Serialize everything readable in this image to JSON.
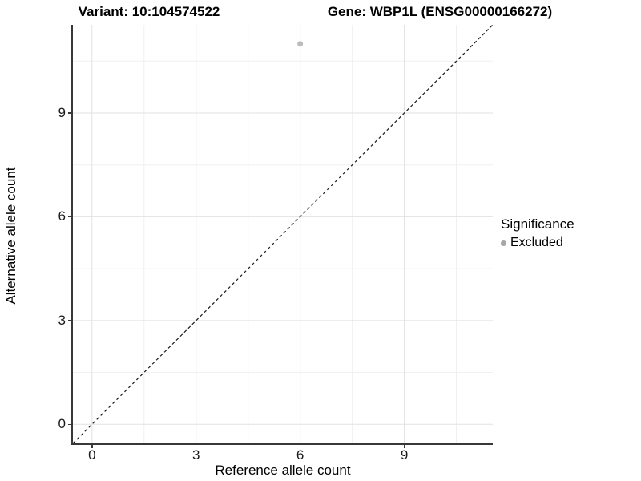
{
  "titles": {
    "variant": "Variant: 10:104574522",
    "gene": "Gene: WBP1L (ENSG00000166272)"
  },
  "axes": {
    "x_label": "Reference allele count",
    "y_label": "Alternative allele count"
  },
  "legend": {
    "title": "Significance",
    "items": [
      {
        "label": "Excluded",
        "color": "#a6a6a6"
      }
    ]
  },
  "colors": {
    "axis_line": "#383838",
    "major_grid": "#e2e2e2",
    "minor_grid": "#f0f0f0",
    "reference_line": "#1a1a1a",
    "point": "#bcbcbc",
    "background": "#ffffff"
  },
  "chart_data": {
    "type": "scatter",
    "title": "Variant: 10:104574522 — Gene: WBP1L (ENSG00000166272)",
    "xlabel": "Reference allele count",
    "ylabel": "Alternative allele count",
    "xlim": [
      -0.55,
      11.55
    ],
    "ylim": [
      -0.55,
      11.55
    ],
    "x_ticks": [
      0,
      3,
      6,
      9
    ],
    "y_ticks": [
      0,
      3,
      6,
      9
    ],
    "x_minor_ticks": [
      1.5,
      4.5,
      7.5,
      10.5
    ],
    "y_minor_ticks": [
      1.5,
      4.5,
      7.5,
      10.5
    ],
    "grid": true,
    "legend_position": "right",
    "series": [
      {
        "name": "Excluded",
        "color": "#bcbcbc",
        "points": [
          {
            "x": 6,
            "y": 11
          }
        ]
      }
    ],
    "reference_line": {
      "type": "identity",
      "style": "dashed",
      "from": [
        -0.55,
        -0.55
      ],
      "to": [
        11.55,
        11.55
      ]
    }
  }
}
